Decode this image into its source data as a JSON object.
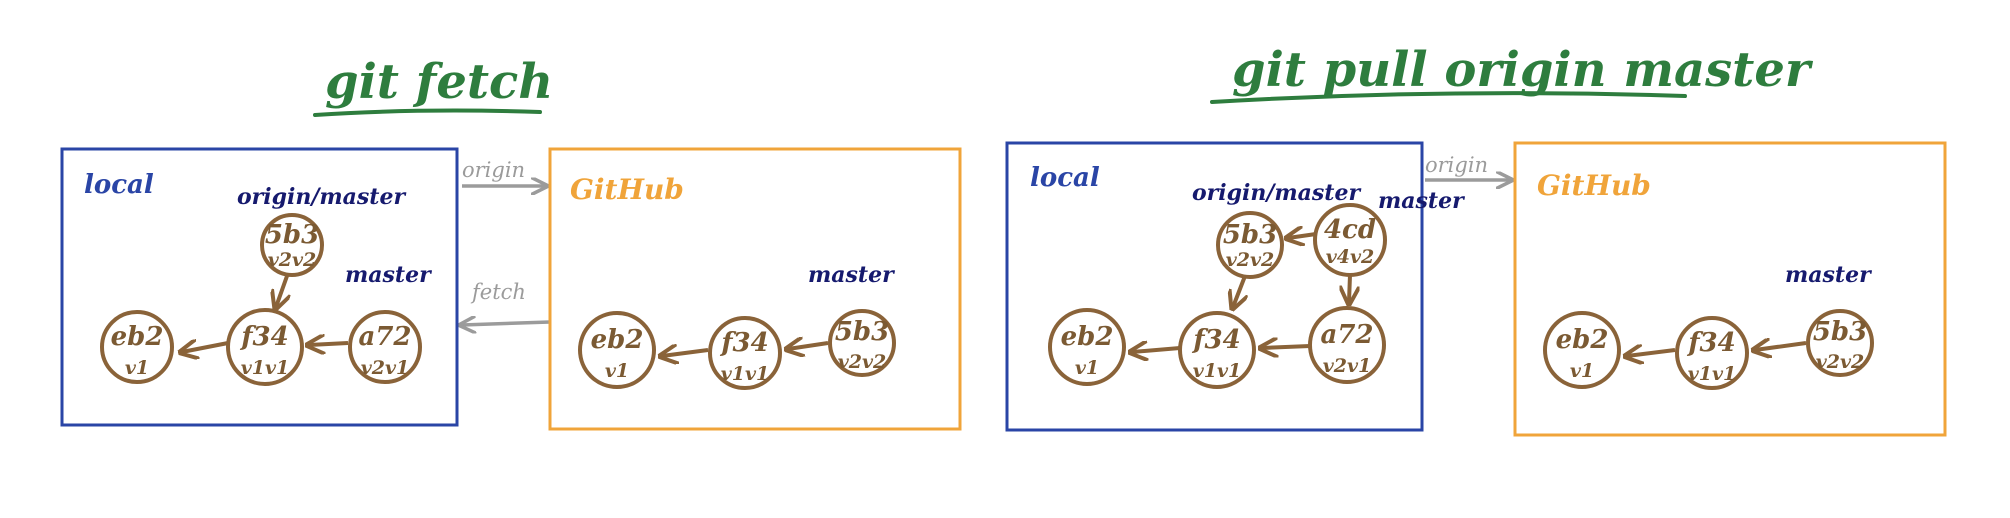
{
  "panels": [
    {
      "title": "git fetch",
      "local": {
        "label": "local",
        "refs": [
          "origin/master",
          "master"
        ],
        "commits": [
          {
            "id": "eb2",
            "version": "v1"
          },
          {
            "id": "f34",
            "version": "v1v1"
          },
          {
            "id": "5b3",
            "version": "v2v2"
          },
          {
            "id": "a72",
            "version": "v2v1"
          }
        ]
      },
      "remote": {
        "label": "GitHub",
        "refs": [
          "master"
        ],
        "commits": [
          {
            "id": "eb2",
            "version": "v1"
          },
          {
            "id": "f34",
            "version": "v1v1"
          },
          {
            "id": "5b3",
            "version": "v2v2"
          }
        ]
      },
      "edges": [
        "origin",
        "fetch"
      ]
    },
    {
      "title": "git pull origin master",
      "local": {
        "label": "local",
        "refs": [
          "origin/master",
          "master"
        ],
        "commits": [
          {
            "id": "eb2",
            "version": "v1"
          },
          {
            "id": "f34",
            "version": "v1v1"
          },
          {
            "id": "5b3",
            "version": "v2v2"
          },
          {
            "id": "a72",
            "version": "v2v1"
          },
          {
            "id": "4cd",
            "version": "v4v2"
          }
        ]
      },
      "remote": {
        "label": "GitHub",
        "refs": [
          "master"
        ],
        "commits": [
          {
            "id": "eb2",
            "version": "v1"
          },
          {
            "id": "f34",
            "version": "v1v1"
          },
          {
            "id": "5b3",
            "version": "v2v2"
          }
        ]
      },
      "edges": [
        "origin"
      ]
    }
  ],
  "colors": {
    "title": "#2e7d3e",
    "local_box": "#2a45a6",
    "github_box": "#f0a43a",
    "commit": "#8a6339",
    "ref_label": "#161a6e",
    "remote_edge": "#9b9b9b"
  }
}
